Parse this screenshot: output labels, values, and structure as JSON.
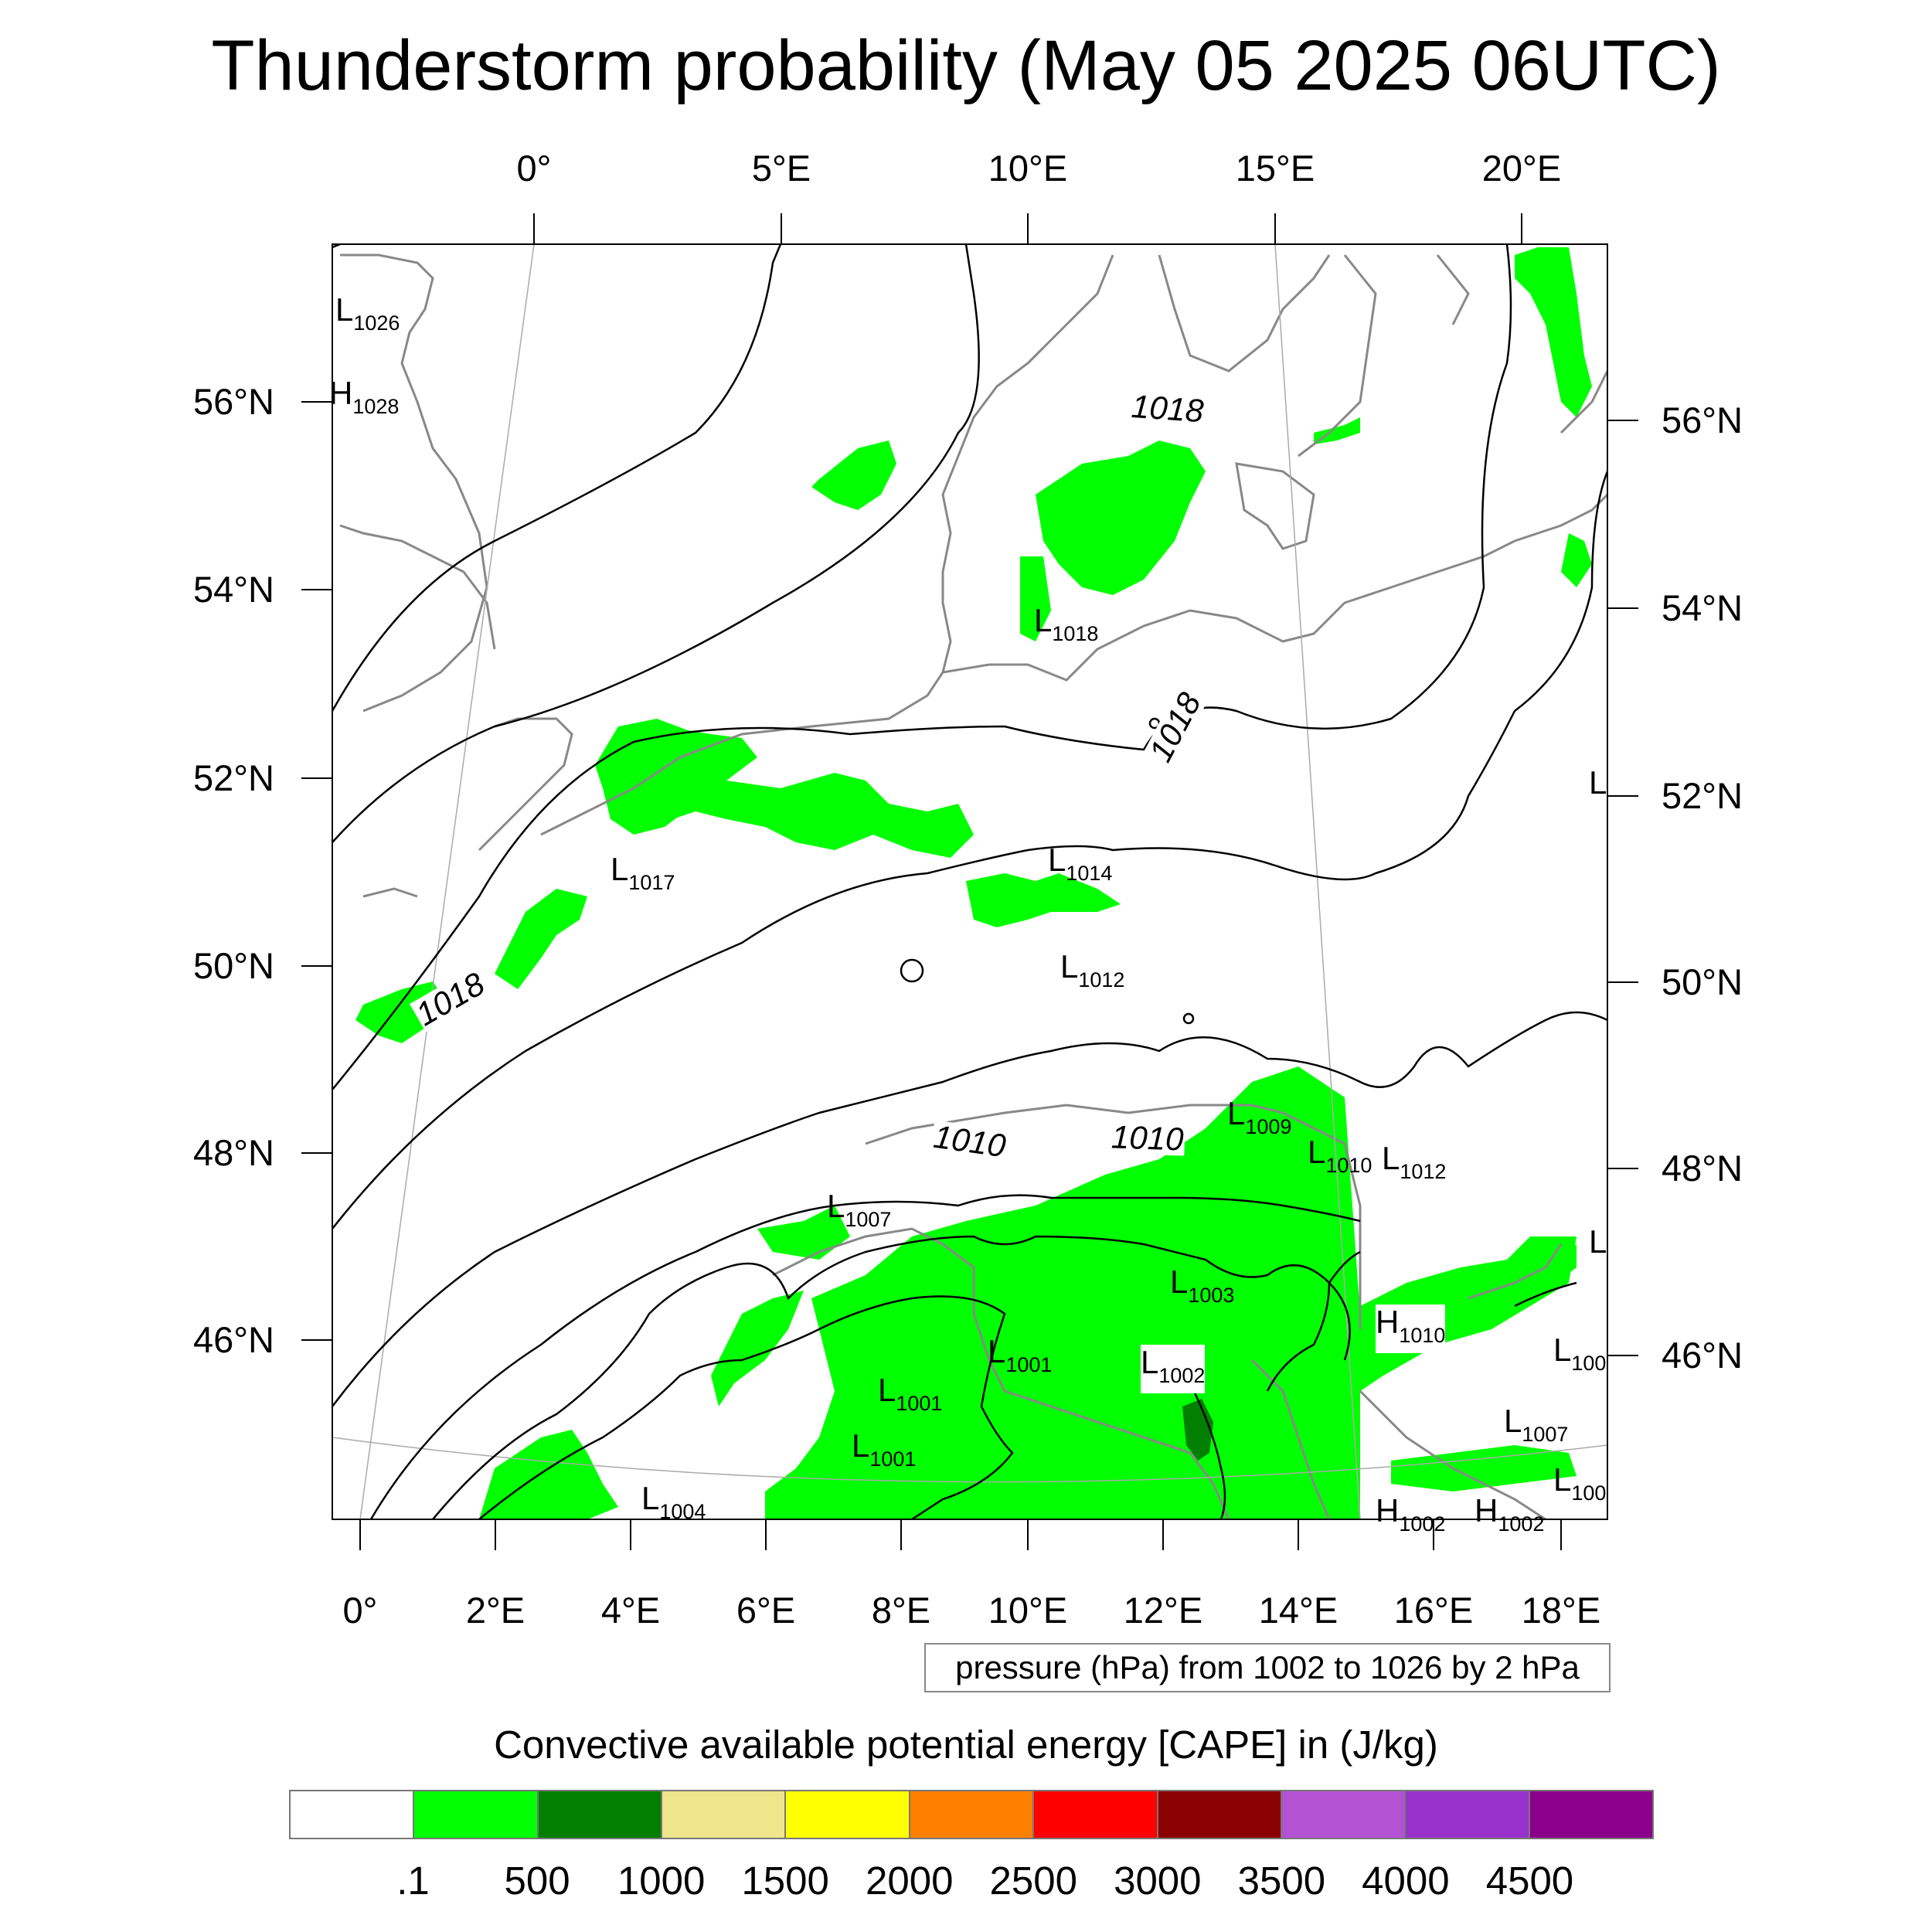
{
  "title": "Thunderstorm probability (May 05 2025 06UTC)",
  "lon_top": [
    "0°",
    "5°E",
    "10°E",
    "15°E",
    "20°E"
  ],
  "lon_bottom": [
    "0°",
    "2°E",
    "4°E",
    "6°E",
    "8°E",
    "10°E",
    "12°E",
    "14°E",
    "16°E",
    "18°E"
  ],
  "lat_left": [
    "56°N",
    "54°N",
    "52°N",
    "50°N",
    "48°N",
    "46°N"
  ],
  "lat_right": [
    "56°N",
    "54°N",
    "52°N",
    "50°N",
    "48°N",
    "46°N"
  ],
  "pressure_centers": [
    {
      "letter": "L",
      "value": "1026"
    },
    {
      "letter": "H",
      "value": "1028"
    },
    {
      "letter": "L",
      "value": "1018"
    },
    {
      "letter": "L",
      "value": "1017"
    },
    {
      "letter": "L",
      "value": "1014"
    },
    {
      "letter": "L",
      "value": "1012"
    },
    {
      "letter": "L",
      "value": "1009"
    },
    {
      "letter": "L",
      "value": "1010"
    },
    {
      "letter": "L",
      "value": "1012"
    },
    {
      "letter": "L",
      "value": "1007"
    },
    {
      "letter": "L",
      "value": "1003"
    },
    {
      "letter": "H",
      "value": "1010"
    },
    {
      "letter": "L",
      "value": "1001"
    },
    {
      "letter": "L",
      "value": "1002"
    },
    {
      "letter": "L",
      "value": "1001"
    },
    {
      "letter": "L",
      "value": "1001"
    },
    {
      "letter": "L",
      "value": "1004"
    },
    {
      "letter": "L",
      "value": "1007"
    },
    {
      "letter": "L",
      "value": "100"
    },
    {
      "letter": "L",
      "value": "100"
    },
    {
      "letter": "L",
      "value": ""
    },
    {
      "letter": "L",
      "value": ""
    },
    {
      "letter": "H",
      "value": "1002"
    },
    {
      "letter": "H",
      "value": "1002"
    }
  ],
  "contour_labels": [
    "1018",
    "1018",
    "1018",
    "1010",
    "1010"
  ],
  "info": "pressure (hPa) from 1002 to 1026 by 2 hPa",
  "legend": {
    "title": "Convective available potential energy [CAPE] in (J/kg)",
    "colors": [
      "#ffffff",
      "#00ff00",
      "#007f00",
      "#efe68c",
      "#ffff00",
      "#ff7f00",
      "#ff0000",
      "#8b0000",
      "#b452d4",
      "#9932cc",
      "#8b008b"
    ],
    "labels": [
      ".1",
      "500",
      "1000",
      "1500",
      "2000",
      "2500",
      "3000",
      "3500",
      "4000",
      "4500"
    ]
  },
  "colors": {
    "cape_green": "#00ff00",
    "cape_dark_green": "#007f00",
    "coast": "#888888",
    "isobar": "#000000"
  }
}
